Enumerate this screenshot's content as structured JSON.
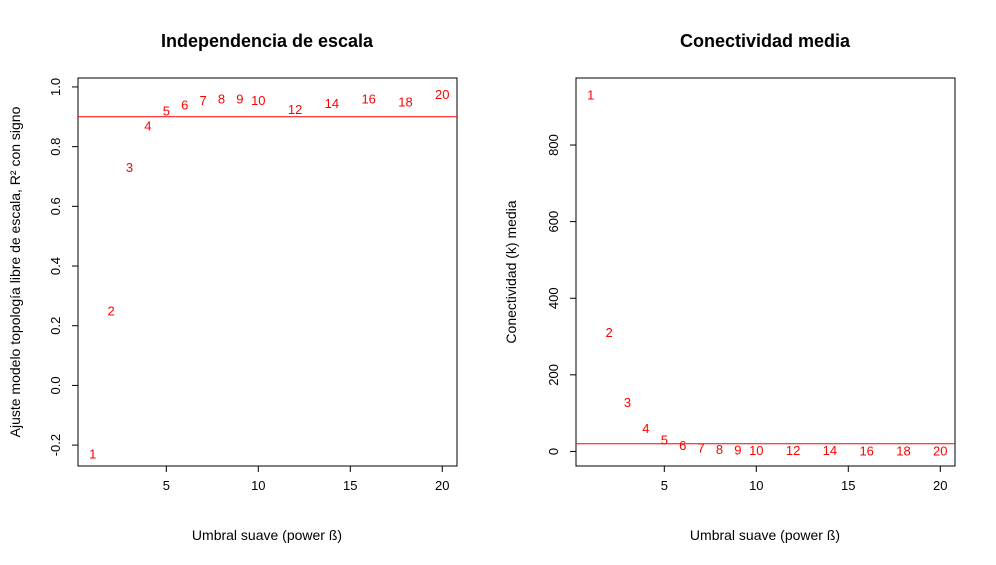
{
  "chart_data": [
    {
      "type": "scatter",
      "title": "Independencia de escala",
      "xlabel": "Umbral suave (power ß)",
      "ylabel": "Ajuste modelo topología libre de escala, R² con signo",
      "xlim": [
        0.2,
        20.8
      ],
      "ylim": [
        -0.27,
        1.03
      ],
      "xticks": [
        5,
        10,
        15,
        20
      ],
      "yticks": [
        -0.2,
        0.0,
        0.2,
        0.4,
        0.6,
        0.8,
        1.0
      ],
      "ytick_labels": [
        "-0.2",
        "0.0",
        "0.2",
        "0.4",
        "0.6",
        "0.8",
        "1.0"
      ],
      "grid": false,
      "reference_line": {
        "orientation": "horizontal",
        "value": 0.9,
        "color": "#ff0000"
      },
      "marker_color": "#ff0000",
      "x": [
        1,
        2,
        3,
        4,
        5,
        6,
        7,
        8,
        9,
        10,
        12,
        14,
        16,
        18,
        20
      ],
      "y": [
        -0.23,
        0.25,
        0.73,
        0.87,
        0.92,
        0.94,
        0.955,
        0.96,
        0.96,
        0.955,
        0.925,
        0.945,
        0.96,
        0.95,
        0.975
      ],
      "labels": [
        "1",
        "2",
        "3",
        "4",
        "5",
        "6",
        "7",
        "8",
        "9",
        "10",
        "12",
        "14",
        "16",
        "18",
        "20"
      ]
    },
    {
      "type": "scatter",
      "title": "Conectividad media",
      "xlabel": "Umbral suave (power ß)",
      "ylabel": "Conectividad (k) media",
      "xlim": [
        0.2,
        20.8
      ],
      "ylim": [
        -38,
        975
      ],
      "xticks": [
        5,
        10,
        15,
        20
      ],
      "yticks": [
        0,
        200,
        400,
        600,
        800
      ],
      "ytick_labels": [
        "0",
        "200",
        "400",
        "600",
        "800"
      ],
      "grid": false,
      "reference_line": {
        "orientation": "horizontal",
        "value": 20,
        "color": "#ff0000"
      },
      "marker_color": "#ff0000",
      "x": [
        1,
        2,
        3,
        4,
        5,
        6,
        7,
        8,
        9,
        10,
        12,
        14,
        16,
        18,
        20
      ],
      "y": [
        930,
        310,
        128,
        60,
        30,
        16,
        9,
        5,
        4,
        3,
        2,
        2,
        1,
        1,
        1
      ],
      "labels": [
        "1",
        "2",
        "3",
        "4",
        "5",
        "6",
        "7",
        "8",
        "9",
        "10",
        "12",
        "14",
        "16",
        "18",
        "20"
      ]
    }
  ]
}
